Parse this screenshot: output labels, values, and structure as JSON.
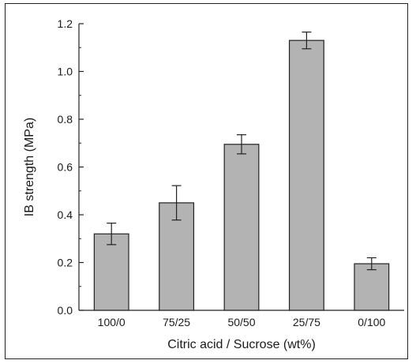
{
  "chart_data": {
    "type": "bar",
    "xlabel": "Citric acid / Sucrose (wt%)",
    "ylabel": "IB strength (MPa)",
    "categories": [
      "100/0",
      "75/25",
      "50/50",
      "25/75",
      "0/100"
    ],
    "values": [
      0.32,
      0.45,
      0.695,
      1.13,
      0.195
    ],
    "errors": [
      0.045,
      0.072,
      0.04,
      0.035,
      0.025
    ],
    "ylim": [
      0,
      1.2
    ],
    "yticks": [
      "0.0",
      "0.2",
      "0.4",
      "0.6",
      "0.8",
      "1.0",
      "1.2"
    ],
    "grid": false,
    "legend": "none",
    "bar_color": "#b3b3b3",
    "bar_edge_color": "#222222"
  }
}
